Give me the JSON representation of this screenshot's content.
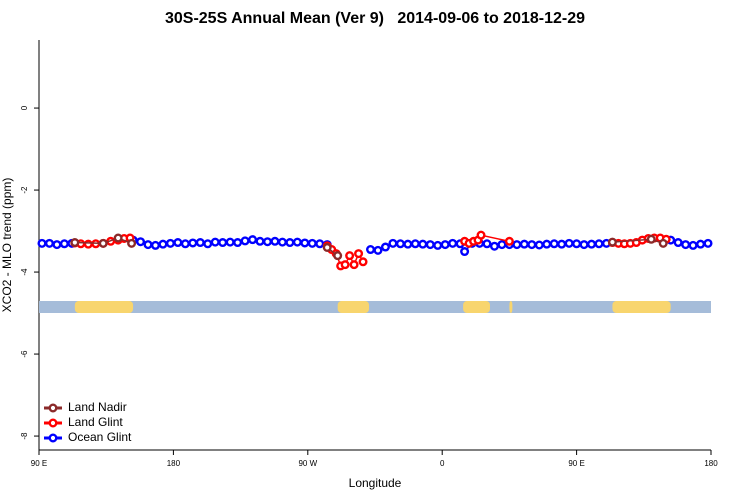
{
  "chart_data": {
    "type": "line",
    "title": "30S-25S Annual Mean (Ver 9)   2014-09-06 to 2018-12-29",
    "x_label": "Longitude",
    "y_label": "XCO2 - MLO trend (ppm)",
    "xlim": [
      90,
      540
    ],
    "ylim": [
      -8.34,
      1.66
    ],
    "xticks": [
      {
        "value": 90,
        "label": "90 E"
      },
      {
        "value": 180,
        "label": "180"
      },
      {
        "value": 270,
        "label": "90 W"
      },
      {
        "value": 360,
        "label": "0"
      },
      {
        "value": 450,
        "label": "90 E"
      },
      {
        "value": 540,
        "label": "180"
      }
    ],
    "yticks": [
      0,
      -2,
      -4,
      -6,
      -8
    ],
    "legend": "bottom-left",
    "land_band": {
      "land_color": "#f8d56e",
      "ocean_color": "#a5bcd9",
      "segments": [
        [
          114,
          153
        ],
        [
          290,
          311
        ],
        [
          374,
          392
        ],
        [
          405,
          407
        ],
        [
          474,
          513
        ]
      ]
    },
    "series": [
      {
        "name": "Land Nadir",
        "color": "#8b2a2a",
        "x": [
          114,
          133,
          143,
          152,
          200,
          283,
          290,
          340,
          474,
          500,
          508
        ],
        "values": [
          -3.28,
          -3.3,
          -3.17,
          -3.3,
          null,
          -3.4,
          -3.6,
          null,
          -3.27,
          -3.2,
          -3.3
        ]
      },
      {
        "name": "Land Glint",
        "color": "#ff0000",
        "x": [
          114,
          118,
          123,
          128,
          133,
          138,
          143,
          147,
          151,
          200,
          283,
          286,
          289,
          292,
          295,
          298,
          301,
          304,
          307,
          340,
          375,
          378,
          381,
          384,
          386,
          405,
          440,
          474,
          478,
          482,
          486,
          490,
          494,
          498,
          502,
          506,
          510
        ],
        "values": [
          -3.29,
          -3.31,
          -3.32,
          -3.31,
          -3.3,
          -3.25,
          -3.22,
          -3.18,
          -3.17,
          null,
          -3.36,
          -3.45,
          -3.55,
          -3.85,
          -3.82,
          -3.6,
          -3.82,
          -3.55,
          -3.75,
          null,
          -3.25,
          -3.3,
          -3.25,
          -3.22,
          -3.1,
          -3.25,
          null,
          -3.28,
          -3.3,
          -3.31,
          -3.3,
          -3.28,
          -3.22,
          -3.18,
          -3.17,
          -3.17,
          -3.2
        ]
      },
      {
        "name": "Ocean Glint",
        "color": "#0000ff",
        "x": [
          92,
          97,
          102,
          107,
          112,
          130,
          153,
          158,
          163,
          168,
          173,
          178,
          183,
          188,
          193,
          198,
          203,
          208,
          213,
          218,
          223,
          228,
          233,
          238,
          243,
          248,
          253,
          258,
          263,
          268,
          273,
          278,
          283,
          295,
          312,
          317,
          322,
          327,
          332,
          337,
          342,
          347,
          352,
          357,
          362,
          367,
          372,
          375,
          380,
          385,
          390,
          395,
          400,
          405,
          410,
          415,
          420,
          425,
          430,
          435,
          440,
          445,
          450,
          455,
          460,
          465,
          470,
          490,
          513,
          518,
          523,
          528,
          533,
          538
        ],
        "values": [
          -3.3,
          -3.3,
          -3.33,
          -3.31,
          -3.3,
          null,
          -3.22,
          -3.26,
          -3.33,
          -3.35,
          -3.32,
          -3.3,
          -3.28,
          -3.31,
          -3.29,
          -3.28,
          -3.31,
          -3.27,
          -3.28,
          -3.27,
          -3.28,
          -3.24,
          -3.21,
          -3.25,
          -3.26,
          -3.25,
          -3.27,
          -3.28,
          -3.27,
          -3.29,
          -3.3,
          -3.31,
          -3.33,
          null,
          -3.45,
          -3.47,
          -3.39,
          -3.3,
          -3.31,
          -3.32,
          -3.31,
          -3.32,
          -3.33,
          -3.35,
          -3.33,
          -3.3,
          -3.31,
          -3.5,
          -3.3,
          -3.3,
          -3.31,
          -3.37,
          -3.33,
          -3.33,
          -3.33,
          -3.32,
          -3.33,
          -3.34,
          -3.32,
          -3.31,
          -3.32,
          -3.3,
          -3.31,
          -3.33,
          -3.32,
          -3.31,
          -3.3,
          null,
          -3.22,
          -3.28,
          -3.33,
          -3.35,
          -3.32,
          -3.3
        ]
      }
    ]
  }
}
